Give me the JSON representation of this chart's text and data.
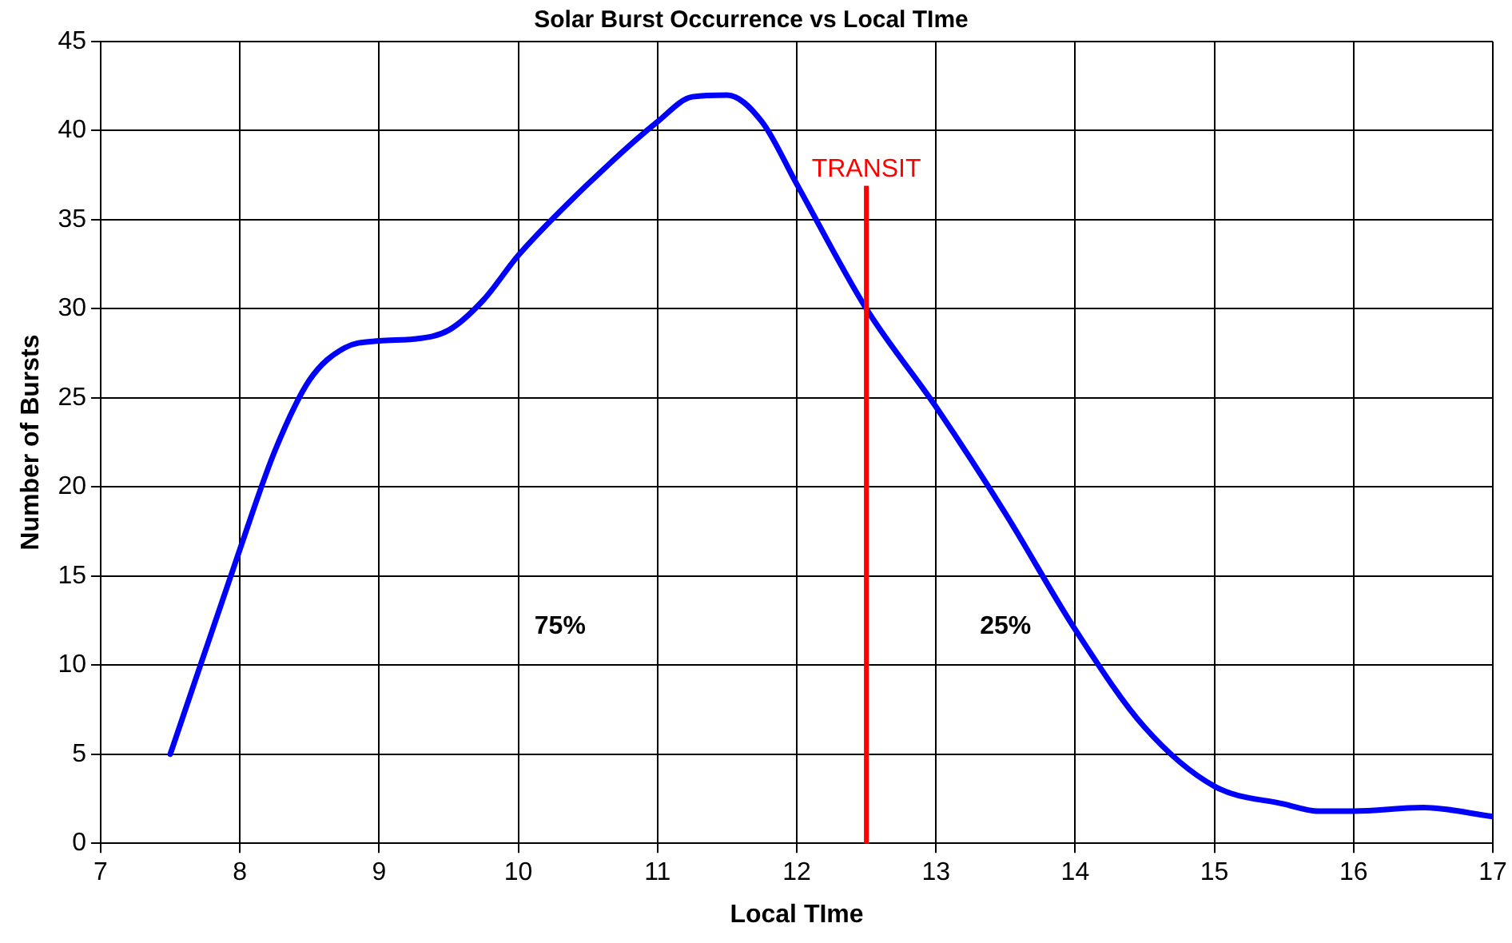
{
  "chart_data": {
    "type": "line",
    "title": "Solar Burst Occurrence vs Local TIme",
    "xlabel": "Local TIme",
    "ylabel": "Number of Bursts",
    "x": [
      7.5,
      8,
      8.25,
      8.5,
      8.75,
      9,
      9.25,
      9.5,
      9.75,
      10,
      10.5,
      11,
      11.25,
      11.5,
      11.75,
      12,
      12.5,
      13,
      13.5,
      14,
      14.5,
      15,
      15.5,
      15.75,
      16,
      16.5,
      17
    ],
    "series": [
      {
        "color": "#0000ff",
        "values": [
          5,
          16.5,
          22,
          26,
          27.8,
          28.2,
          28.3,
          28.8,
          30.5,
          33,
          37,
          40.5,
          41.9,
          42,
          40.5,
          37,
          30,
          24.5,
          18.5,
          12,
          6.5,
          3.2,
          2.2,
          1.8,
          1.8,
          2,
          1.5
        ]
      }
    ],
    "xlim": [
      7,
      17
    ],
    "xticks": [
      7,
      8,
      9,
      10,
      11,
      12,
      13,
      14,
      15,
      16,
      17
    ],
    "ylim": [
      0,
      45
    ],
    "yticks": [
      0,
      5,
      10,
      15,
      20,
      25,
      30,
      35,
      40,
      45
    ],
    "grid": true,
    "legend": false,
    "marker": "none",
    "line_style": "solid",
    "ref_lines": [
      {
        "axis": "x",
        "value": 12.5,
        "label": "TRANSIT",
        "color": "#ff0000"
      }
    ],
    "annotations": [
      "75%",
      "25%"
    ]
  }
}
